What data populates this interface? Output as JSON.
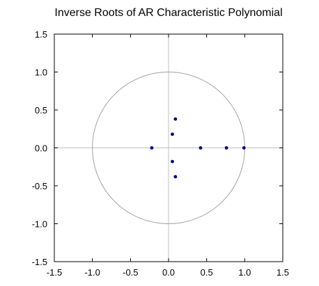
{
  "chart_data": {
    "type": "scatter",
    "title": "Inverse Roots of AR Characteristic Polynomial",
    "xlabel": "",
    "ylabel": "",
    "xlim": [
      -1.5,
      1.5
    ],
    "ylim": [
      -1.5,
      1.5
    ],
    "x_ticks": [
      "-1.5",
      "-1.0",
      "-0.5",
      "0.0",
      "0.5",
      "1.0",
      "1.5"
    ],
    "y_ticks": [
      "1.5",
      "1.0",
      "0.5",
      "0.0",
      "-0.5",
      "-1.0",
      "-1.5"
    ],
    "x_tick_values": [
      -1.5,
      -1.0,
      -0.5,
      0.0,
      0.5,
      1.0,
      1.5
    ],
    "y_tick_values": [
      1.5,
      1.0,
      0.5,
      0.0,
      -0.5,
      -1.0,
      -1.5
    ],
    "unit_circle_radius": 1.0,
    "grid": false,
    "legend": "none",
    "colors": {
      "points": "#00008B",
      "circle": "#a0a0a0",
      "axes_lines": "#c0c0c0",
      "frame": "#000000"
    },
    "points": [
      {
        "x": -0.22,
        "y": 0.0
      },
      {
        "x": 0.05,
        "y": 0.18
      },
      {
        "x": 0.05,
        "y": -0.18
      },
      {
        "x": 0.09,
        "y": 0.38
      },
      {
        "x": 0.09,
        "y": -0.38
      },
      {
        "x": 0.42,
        "y": 0.0
      },
      {
        "x": 0.76,
        "y": 0.0
      },
      {
        "x": 0.99,
        "y": 0.0
      }
    ]
  }
}
